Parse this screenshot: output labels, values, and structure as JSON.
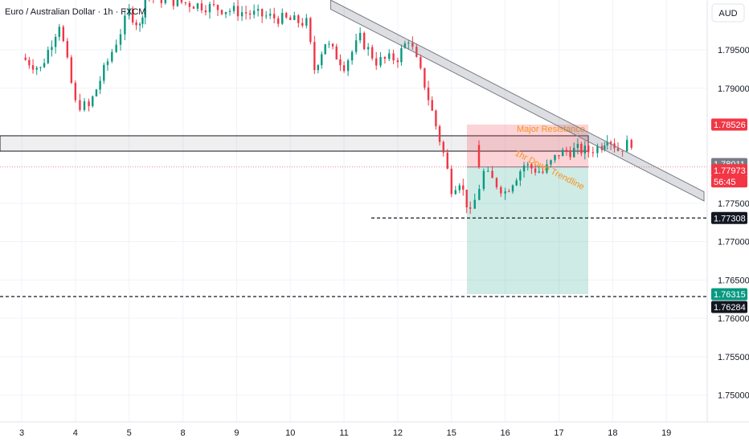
{
  "chart_data": {
    "type": "candlestick",
    "title": "Euro / Australian Dollar · 1h · FXCM",
    "currency": "AUD",
    "ylim": [
      1.7465,
      1.8015
    ],
    "y_ticks": [
      1.795,
      1.79,
      1.775,
      1.77,
      1.765,
      1.76,
      1.755,
      1.75
    ],
    "y_tick_labels": [
      "1.79500",
      "1.79000",
      "1.77500",
      "1.77000",
      "1.76500",
      "1.76000",
      "1.75500",
      "1.75000"
    ],
    "x_ticks": [
      {
        "label": "3",
        "day": 3
      },
      {
        "label": "4",
        "day": 4
      },
      {
        "label": "5",
        "day": 5
      },
      {
        "label": "8",
        "day": 8
      },
      {
        "label": "9",
        "day": 9
      },
      {
        "label": "10",
        "day": 10
      },
      {
        "label": "11",
        "day": 11
      },
      {
        "label": "12",
        "day": 12
      },
      {
        "label": "15",
        "day": 15
      },
      {
        "label": "16",
        "day": 16
      },
      {
        "label": "17",
        "day": 17
      },
      {
        "label": "18",
        "day": 18
      },
      {
        "label": "19",
        "day": 19
      }
    ],
    "price_tags": [
      {
        "label": "1.78526",
        "value": 1.78526,
        "color": "#f23645"
      },
      {
        "label": "1.78011",
        "value": 1.78011,
        "color": "#787b86"
      },
      {
        "label": "1.77973",
        "value": 1.77973,
        "color": "#f23645"
      },
      {
        "label": "56:45",
        "value": 1.77973,
        "color": "#f23645"
      },
      {
        "label": "1.77308",
        "value": 1.77308,
        "color": "#131722"
      },
      {
        "label": "1.76315",
        "value": 1.76315,
        "color": "#089981"
      },
      {
        "label": "1.76284",
        "value": 1.76284,
        "color": "#131722"
      }
    ],
    "path": [
      [
        3,
        1.794
      ],
      [
        3.35,
        1.7925
      ],
      [
        3.7,
        1.7985
      ],
      [
        4.0,
        1.788
      ],
      [
        4.25,
        1.7875
      ],
      [
        4.6,
        1.7935
      ],
      [
        5.0,
        1.8
      ],
      [
        5.2,
        1.798
      ],
      [
        5.3,
        1.802
      ],
      [
        8.3,
        1.7985
      ],
      [
        8.45,
        1.7925
      ],
      [
        8.65,
        1.796
      ],
      [
        9.0,
        1.793
      ],
      [
        9.3,
        1.7965
      ],
      [
        9.6,
        1.7935
      ],
      [
        10.0,
        1.794
      ],
      [
        10.2,
        1.7965
      ],
      [
        10.5,
        1.7905
      ],
      [
        10.85,
        1.7815
      ],
      [
        11.0,
        1.777
      ],
      [
        11.15,
        1.778
      ],
      [
        11.35,
        1.7735
      ],
      [
        11.6,
        1.779
      ],
      [
        12.0,
        1.7765
      ],
      [
        12.35,
        1.78
      ],
      [
        12.7,
        1.779
      ],
      [
        13.0,
        1.7815
      ],
      [
        13.35,
        1.782
      ],
      [
        13.55,
        1.7818
      ],
      [
        13.8,
        1.7826
      ],
      [
        13.9,
        1.7838
      ],
      [
        14.1,
        1.782
      ],
      [
        14.35,
        1.783
      ]
    ],
    "resistance_zone": {
      "label": "Major Resistance",
      "top": 1.7838,
      "bottom": 1.7818,
      "day_start": 2.6,
      "day_end": 14.8
    },
    "trendline": {
      "label": "1hr Down Trendline",
      "start": [
        8.75,
        1.8015
      ],
      "end": [
        15.7,
        1.7765
      ],
      "width": 0.0012
    },
    "position": {
      "type": "short",
      "entry": 1.77973,
      "stop": 1.78526,
      "target": 1.76315,
      "day_start": 13.0,
      "day_end": 15.4
    },
    "horizontal_levels": [
      {
        "value": 1.77308,
        "day_start": 11.4,
        "style": "dashed"
      },
      {
        "value": 1.76284,
        "day_start": 2.6,
        "style": "dashed"
      }
    ]
  }
}
